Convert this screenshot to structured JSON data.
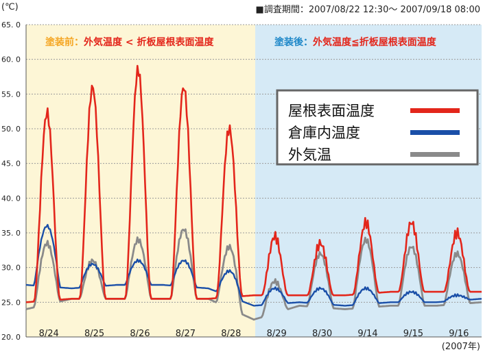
{
  "header": {
    "unit": "(℃)",
    "period": "■調査期間：2007/08/22 12:30～ 2007/09/18 08:00",
    "year": "(2007年)"
  },
  "phases": {
    "before": {
      "part1": "塗装前：",
      "part2": "外気温度 < 折板屋根表面温度",
      "bg": "#fdf6d6",
      "c1": "#f5a623",
      "c2": "#e3261b"
    },
    "after": {
      "part1": "塗装後：",
      "part2": "外気温度≦折板屋根表面温度",
      "bg": "#d6eaf6",
      "c1": "#1d87c8",
      "c2": "#e3261b"
    }
  },
  "legend": [
    {
      "label": "屋根表面温度",
      "color": "#e3261b"
    },
    {
      "label": "倉庫内温度",
      "color": "#1a4fa8"
    },
    {
      "label": "外気温",
      "color": "#8a8a8a"
    }
  ],
  "chart_data": {
    "type": "line",
    "ylim": [
      20,
      65
    ],
    "yticks": [
      "65. 0",
      "60. 0",
      "55. 0",
      "50. 0",
      "45. 0",
      "40. 0",
      "35. 0",
      "30. 0",
      "25. 0",
      "20. 0"
    ],
    "ytick_values": [
      65,
      60,
      55,
      50,
      45,
      40,
      35,
      30,
      25,
      20
    ],
    "categories": [
      "8/24",
      "8/25",
      "8/26",
      "8/27",
      "8/28",
      "8/29",
      "8/30",
      "9/14",
      "9/15",
      "9/16"
    ],
    "daily": {
      "roof": {
        "min": [
          25.0,
          25.5,
          25.5,
          25.5,
          25.5,
          26.0,
          26.0,
          26.0,
          26.5,
          26.5,
          26.5
        ],
        "max": [
          52.3,
          56.0,
          58.5,
          56.0,
          50.0,
          34.5,
          33.5,
          36.5,
          36.5,
          35.0
        ]
      },
      "indoor": {
        "min": [
          27.5,
          27.0,
          27.5,
          27.5,
          27.0,
          24.5,
          25.0,
          24.5,
          25.0,
          25.0,
          25.5
        ],
        "max": [
          36.0,
          30.5,
          31.0,
          31.0,
          29.5,
          27.0,
          27.0,
          27.0,
          26.5,
          26.0
        ]
      },
      "outdoor": {
        "min": [
          24.0,
          25.5,
          25.5,
          25.5,
          25.5,
          22.5,
          24.5,
          24.0,
          24.5,
          24.5,
          25.0
        ],
        "max": [
          33.5,
          31.0,
          34.0,
          35.5,
          33.0,
          28.0,
          32.0,
          34.0,
          33.0,
          32.0
        ]
      }
    },
    "series": [
      {
        "name": "屋根表面温度",
        "key": "roof",
        "color": "#e3261b"
      },
      {
        "name": "倉庫内温度",
        "key": "indoor",
        "color": "#1a4fa8"
      },
      {
        "name": "外気温",
        "key": "outdoor",
        "color": "#8a8a8a"
      }
    ]
  }
}
